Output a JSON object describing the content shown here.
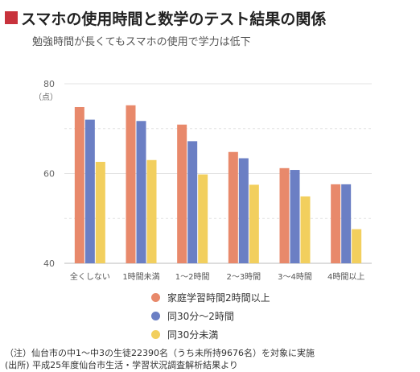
{
  "title": "スマホの使用時間と数学のテスト結果の関係",
  "subtitle": "勉強時間が長くてもスマホの使用で学力は低下",
  "colors": {
    "accent": "#c8323c"
  },
  "chart_data": {
    "type": "bar",
    "ylabel": "（点）",
    "ylim": [
      40,
      80
    ],
    "yticks": [
      40,
      60,
      80
    ],
    "grid": true,
    "categories": [
      "全くしない",
      "1時間未満",
      "1～2時間",
      "2～3時間",
      "3～4時間",
      "4時間以上"
    ],
    "series": [
      {
        "name": "家庭学習時間2時間以上",
        "color": "#e8896b",
        "values": [
          74.8,
          75.2,
          70.9,
          64.8,
          61.2,
          57.6
        ]
      },
      {
        "name": "同30分～2時間",
        "color": "#6b7fc4",
        "values": [
          72.0,
          71.7,
          67.2,
          63.4,
          60.8,
          57.6
        ]
      },
      {
        "name": "同30分未満",
        "color": "#f2cf5e",
        "values": [
          62.6,
          63.0,
          59.8,
          57.5,
          54.9,
          47.6
        ]
      }
    ],
    "legend_position": "bottom"
  },
  "notes": [
    "（注）仙台市の中1～中3の生徒22390名（うち未所持9676名）を対象に実施",
    "(出所) 平成25年度仙台市生活・学習状況調査解析結果より"
  ]
}
